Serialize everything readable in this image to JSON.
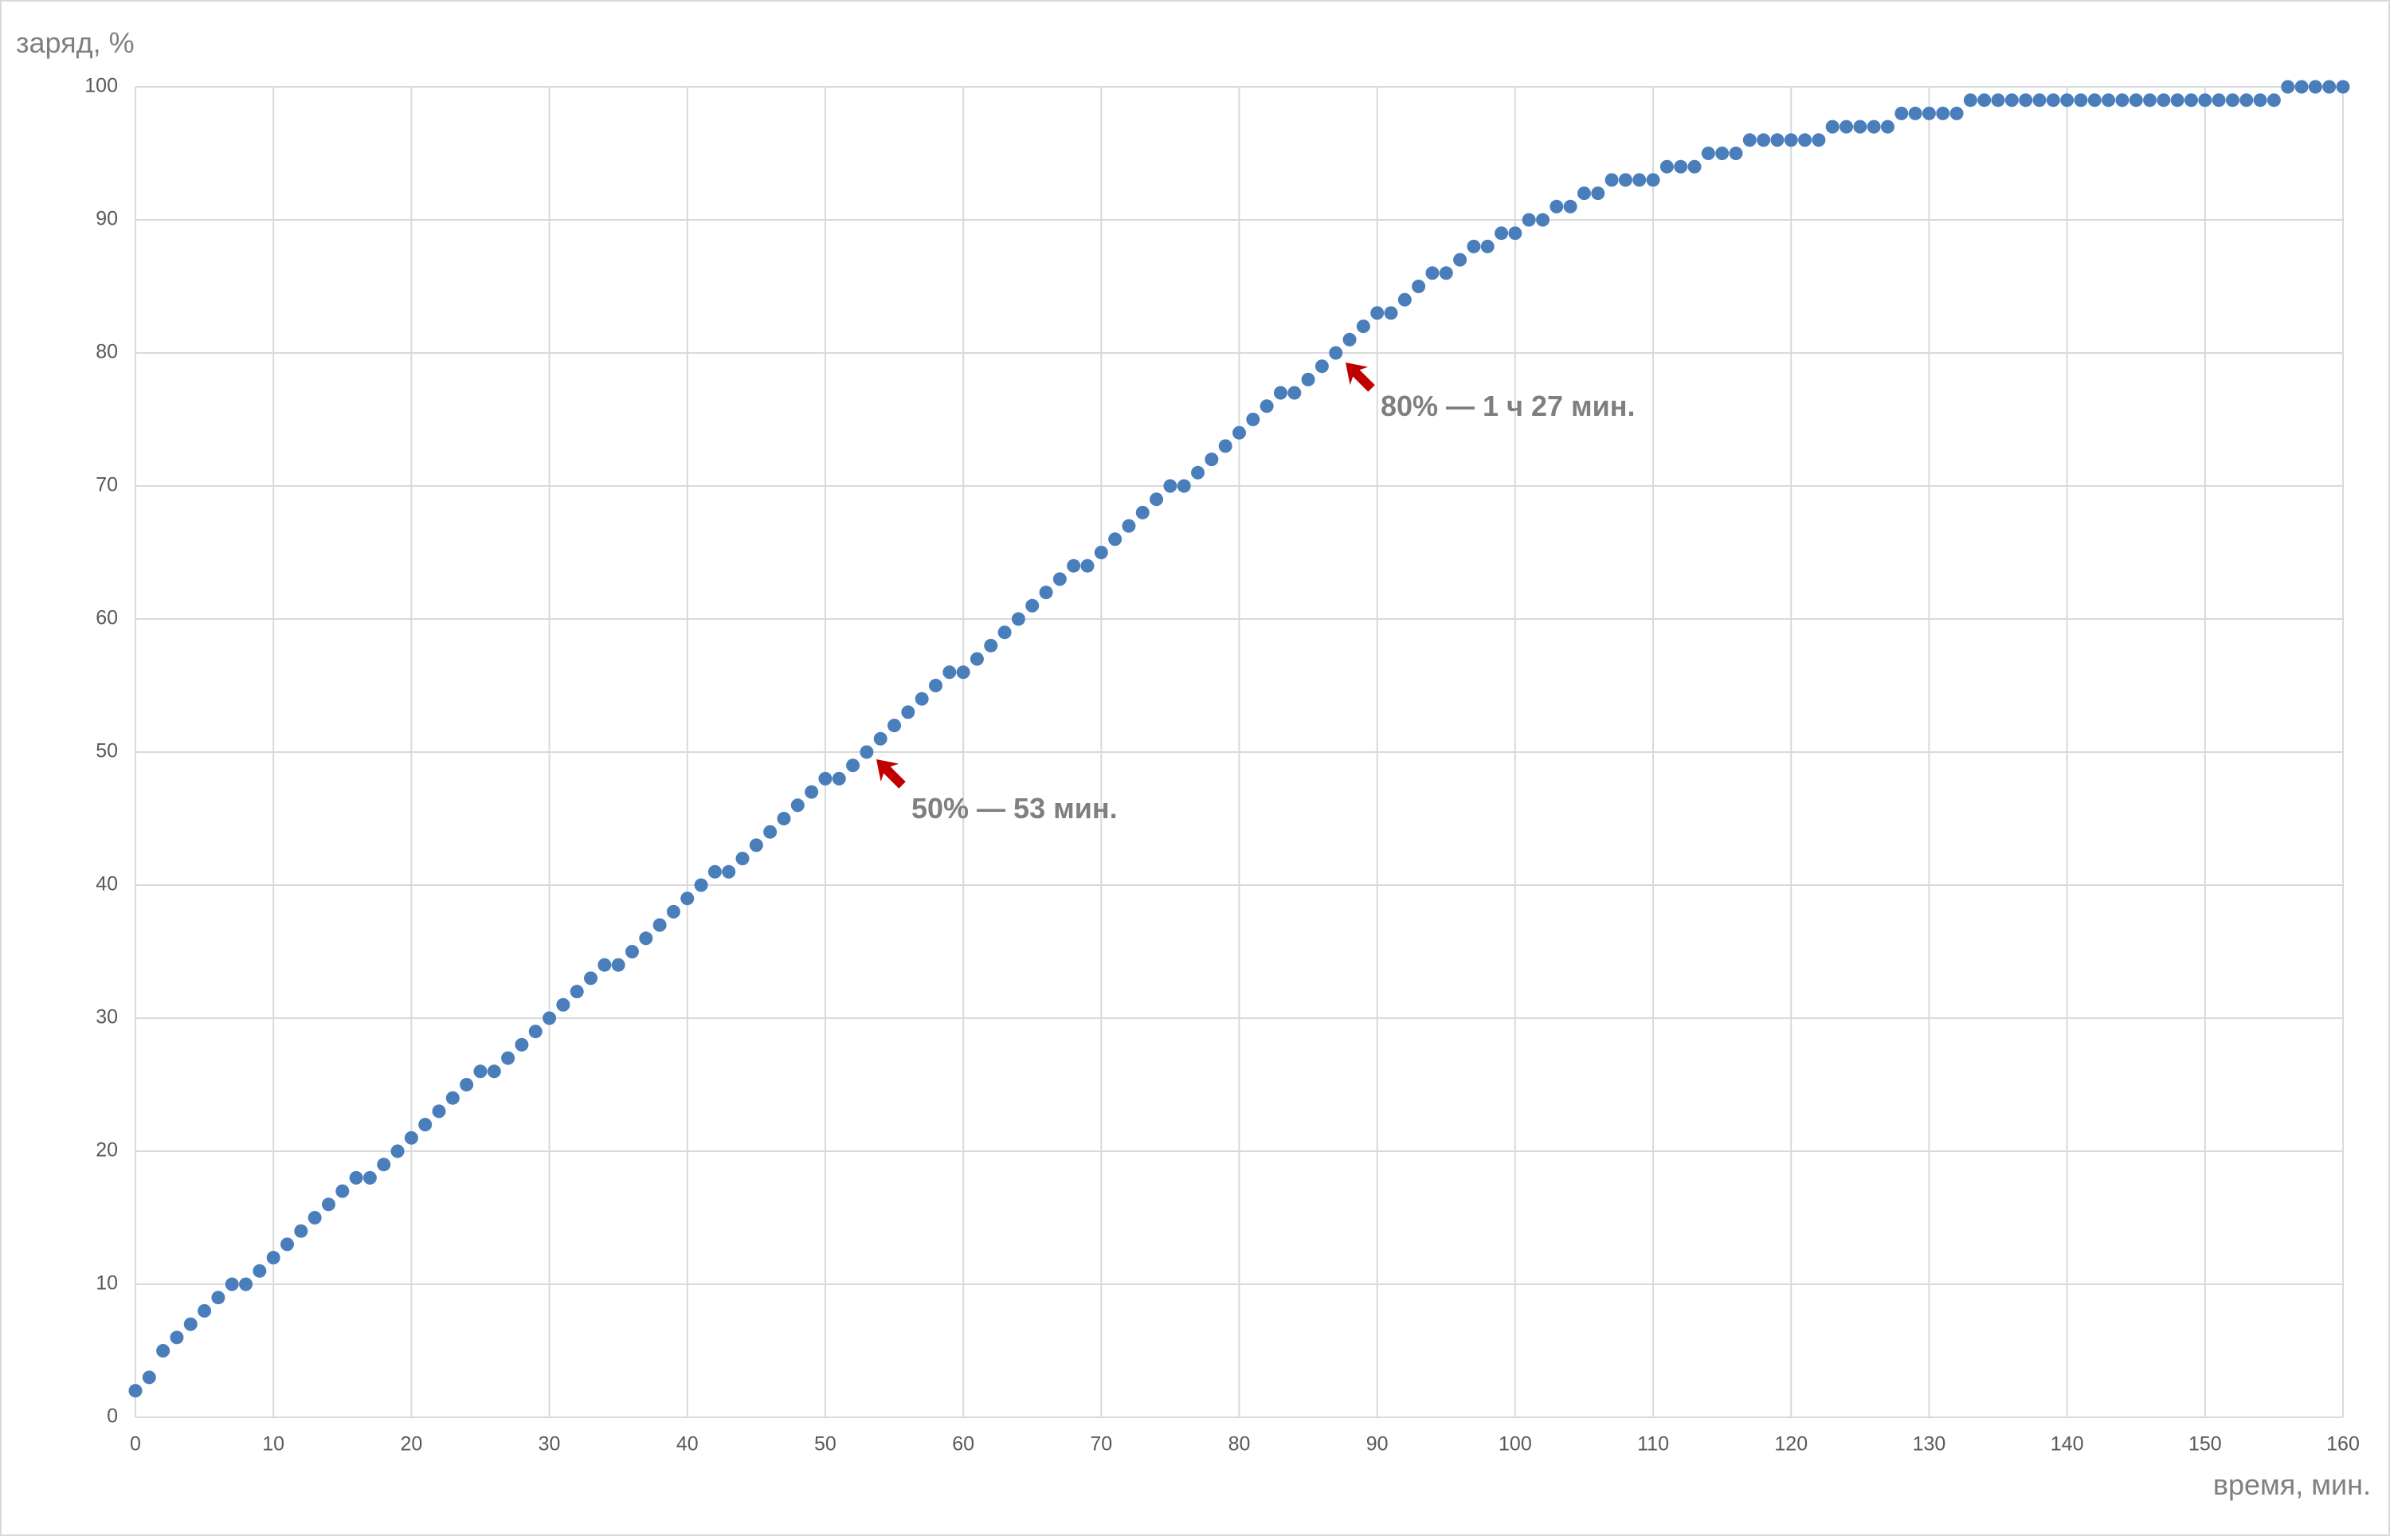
{
  "chart_data": {
    "type": "scatter",
    "ylabel": "заряд, %",
    "xlabel": "время, мин.",
    "annotations": [
      "80% — 1 ч 27 мин.",
      "50% — 53 мин."
    ],
    "color": "#4a7ebb",
    "grid": true,
    "xlim": [
      0,
      160
    ],
    "xticks": [
      0,
      10,
      20,
      30,
      40,
      50,
      60,
      70,
      80,
      90,
      100,
      110,
      120,
      130,
      140,
      150,
      160
    ],
    "ylim": [
      0,
      100
    ],
    "yticks": [
      0,
      10,
      20,
      30,
      40,
      50,
      60,
      70,
      80,
      90,
      100
    ],
    "x": [
      0,
      1,
      2,
      3,
      4,
      5,
      6,
      7,
      8,
      9,
      10,
      11,
      12,
      13,
      14,
      15,
      16,
      17,
      18,
      19,
      20,
      21,
      22,
      23,
      24,
      25,
      26,
      27,
      28,
      29,
      30,
      31,
      32,
      33,
      34,
      35,
      36,
      37,
      38,
      39,
      40,
      41,
      42,
      43,
      44,
      45,
      46,
      47,
      48,
      49,
      50,
      51,
      52,
      53,
      54,
      55,
      56,
      57,
      58,
      59,
      60,
      61,
      62,
      63,
      64,
      65,
      66,
      67,
      68,
      69,
      70,
      71,
      72,
      73,
      74,
      75,
      76,
      77,
      78,
      79,
      80,
      81,
      82,
      83,
      84,
      85,
      86,
      87,
      88,
      89,
      90,
      91,
      92,
      93,
      94,
      95,
      96,
      97,
      98,
      99,
      100,
      101,
      102,
      103,
      104,
      105,
      106,
      107,
      108,
      109,
      110,
      111,
      112,
      113,
      114,
      115,
      116,
      117,
      118,
      119,
      120,
      121,
      122,
      123,
      124,
      125,
      126,
      127,
      128,
      129,
      130,
      131,
      132,
      133,
      134,
      135,
      136,
      137,
      138,
      139,
      140,
      141,
      142,
      143,
      144,
      145,
      146,
      147,
      148,
      149,
      150,
      151,
      152,
      153,
      154,
      155,
      156,
      157,
      158,
      159,
      160
    ],
    "values": [
      2,
      3,
      5,
      6,
      7,
      8,
      9,
      10,
      10,
      11,
      12,
      13,
      14,
      15,
      16,
      17,
      18,
      18,
      19,
      20,
      21,
      22,
      23,
      24,
      25,
      26,
      26,
      27,
      28,
      29,
      30,
      31,
      32,
      33,
      34,
      34,
      35,
      36,
      37,
      38,
      39,
      40,
      41,
      41,
      42,
      43,
      44,
      45,
      46,
      47,
      48,
      48,
      49,
      50,
      51,
      52,
      53,
      54,
      55,
      56,
      56,
      57,
      58,
      59,
      60,
      61,
      62,
      63,
      64,
      64,
      65,
      66,
      67,
      68,
      69,
      70,
      70,
      71,
      72,
      73,
      74,
      75,
      76,
      77,
      77,
      78,
      79,
      80,
      81,
      82,
      83,
      83,
      84,
      85,
      86,
      86,
      87,
      88,
      88,
      89,
      89,
      90,
      90,
      91,
      91,
      92,
      92,
      93,
      93,
      93,
      93,
      94,
      94,
      94,
      95,
      95,
      95,
      96,
      96,
      96,
      96,
      96,
      96,
      97,
      97,
      97,
      97,
      97,
      98,
      98,
      98,
      98,
      98,
      99,
      99,
      99,
      99,
      99,
      99,
      99,
      99,
      99,
      99,
      99,
      99,
      99,
      99,
      99,
      99,
      99,
      99,
      99,
      99,
      99,
      99,
      99,
      100,
      100,
      100,
      100,
      100
    ]
  }
}
